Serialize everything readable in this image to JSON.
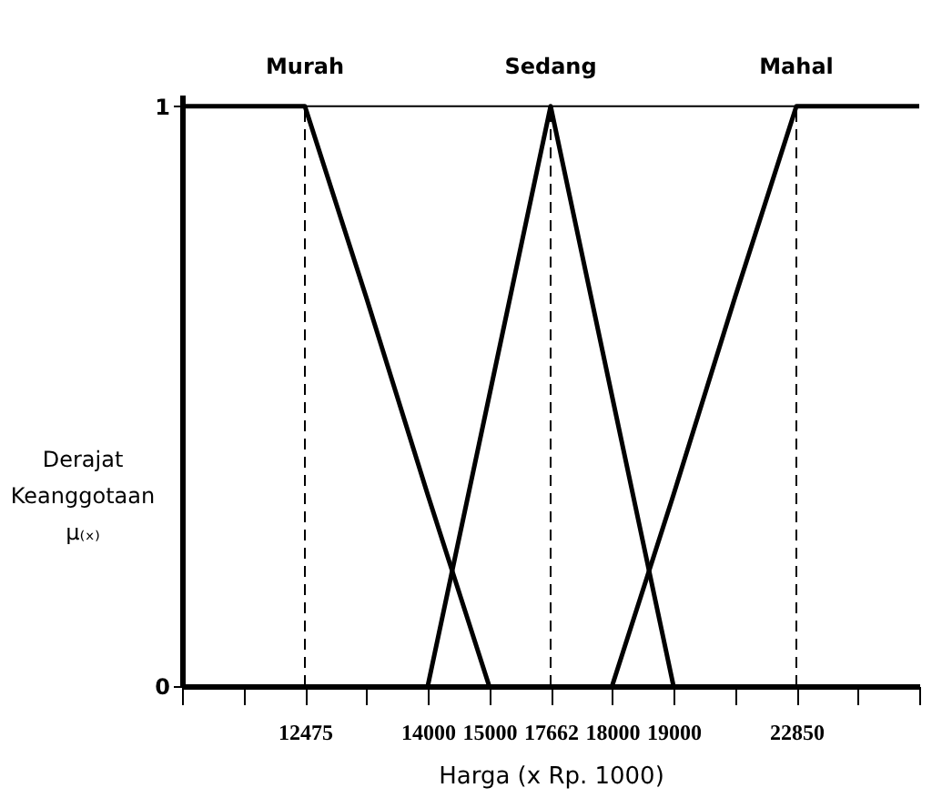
{
  "chart_data": {
    "type": "line",
    "xlabel": "Harga (x Rp. 1000)",
    "ylabel": "Derajat Keanggotaan μ₍ₓ₎",
    "categories": [
      null,
      null,
      "12475",
      null,
      "14000",
      "15000",
      "17662",
      "18000",
      "19000",
      null,
      "22850",
      null,
      null
    ],
    "series": [
      {
        "name": "Murah",
        "color": "#000000",
        "values": [
          1,
          1,
          1,
          0.67,
          0.33,
          0,
          null,
          null,
          null,
          null,
          null,
          null,
          null
        ]
      },
      {
        "name": "Sedang",
        "color": "#000000",
        "values": [
          null,
          null,
          null,
          null,
          0,
          0.5,
          1,
          0.5,
          0,
          null,
          null,
          null,
          null
        ]
      },
      {
        "name": "Mahal",
        "color": "#000000",
        "values": [
          null,
          null,
          null,
          null,
          null,
          null,
          null,
          0,
          0.33,
          0.67,
          1,
          1,
          1
        ]
      }
    ],
    "ylim": [
      0,
      1.02
    ],
    "yticks": [
      0,
      1
    ],
    "ref_lines": [
      {
        "axis": "y",
        "value": 1,
        "color": "#000000",
        "line_style": "solid"
      },
      {
        "axis": "x",
        "value": "12475",
        "color": "#000000",
        "line_style": "dashed"
      },
      {
        "axis": "x",
        "value": "17662",
        "color": "#000000",
        "line_style": "dashed"
      },
      {
        "axis": "x",
        "value": "22850",
        "color": "#000000",
        "line_style": "dashed"
      }
    ]
  }
}
